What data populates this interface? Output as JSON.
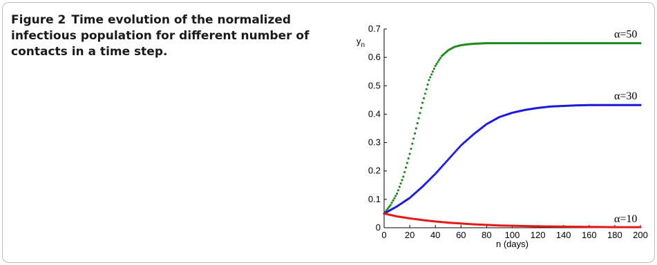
{
  "caption": {
    "label": "Figure 2",
    "text": "Time evolution of the normalized infectious population for different number of contacts in a time step."
  },
  "chart_data": {
    "type": "scatter",
    "xlabel": "n (days)",
    "ylabel": "yn",
    "ylabel_main": "y",
    "ylabel_sub": "n",
    "xlim": [
      0,
      200
    ],
    "ylim": [
      0,
      0.7
    ],
    "xticks": [
      0,
      20,
      40,
      60,
      80,
      100,
      120,
      140,
      160,
      180,
      200
    ],
    "yticks": [
      0,
      0.1,
      0.2,
      0.3,
      0.4,
      0.5,
      0.6,
      0.7
    ],
    "ytick_labels": [
      "0",
      "0.1",
      "0.2",
      "0.3",
      "0.4",
      "0.5",
      "0.6",
      "0.7"
    ],
    "grid": false,
    "series": [
      {
        "name": "α=50",
        "color": "#1f8a1f",
        "x": [
          0,
          5,
          10,
          15,
          20,
          25,
          30,
          35,
          40,
          45,
          50,
          55,
          60,
          65,
          70,
          75,
          80,
          90,
          100,
          120,
          140,
          160,
          180,
          200
        ],
        "y": [
          0.05,
          0.08,
          0.12,
          0.18,
          0.26,
          0.35,
          0.44,
          0.52,
          0.57,
          0.605,
          0.625,
          0.637,
          0.643,
          0.646,
          0.648,
          0.649,
          0.65,
          0.65,
          0.65,
          0.65,
          0.65,
          0.65,
          0.65,
          0.65
        ]
      },
      {
        "name": "α=30",
        "color": "#1a1add",
        "x": [
          0,
          10,
          20,
          30,
          40,
          50,
          60,
          70,
          80,
          90,
          100,
          110,
          120,
          130,
          140,
          150,
          160,
          170,
          180,
          190,
          200
        ],
        "y": [
          0.05,
          0.075,
          0.105,
          0.145,
          0.19,
          0.24,
          0.29,
          0.33,
          0.365,
          0.39,
          0.405,
          0.415,
          0.422,
          0.427,
          0.429,
          0.431,
          0.432,
          0.432,
          0.432,
          0.432,
          0.432
        ]
      },
      {
        "name": "α=10",
        "color": "#e31a1a",
        "x": [
          0,
          10,
          20,
          30,
          40,
          50,
          60,
          70,
          80,
          90,
          100,
          120,
          140,
          160,
          180,
          200
        ],
        "y": [
          0.05,
          0.04,
          0.033,
          0.027,
          0.022,
          0.018,
          0.015,
          0.012,
          0.01,
          0.008,
          0.007,
          0.005,
          0.004,
          0.003,
          0.002,
          0.002
        ]
      }
    ]
  }
}
